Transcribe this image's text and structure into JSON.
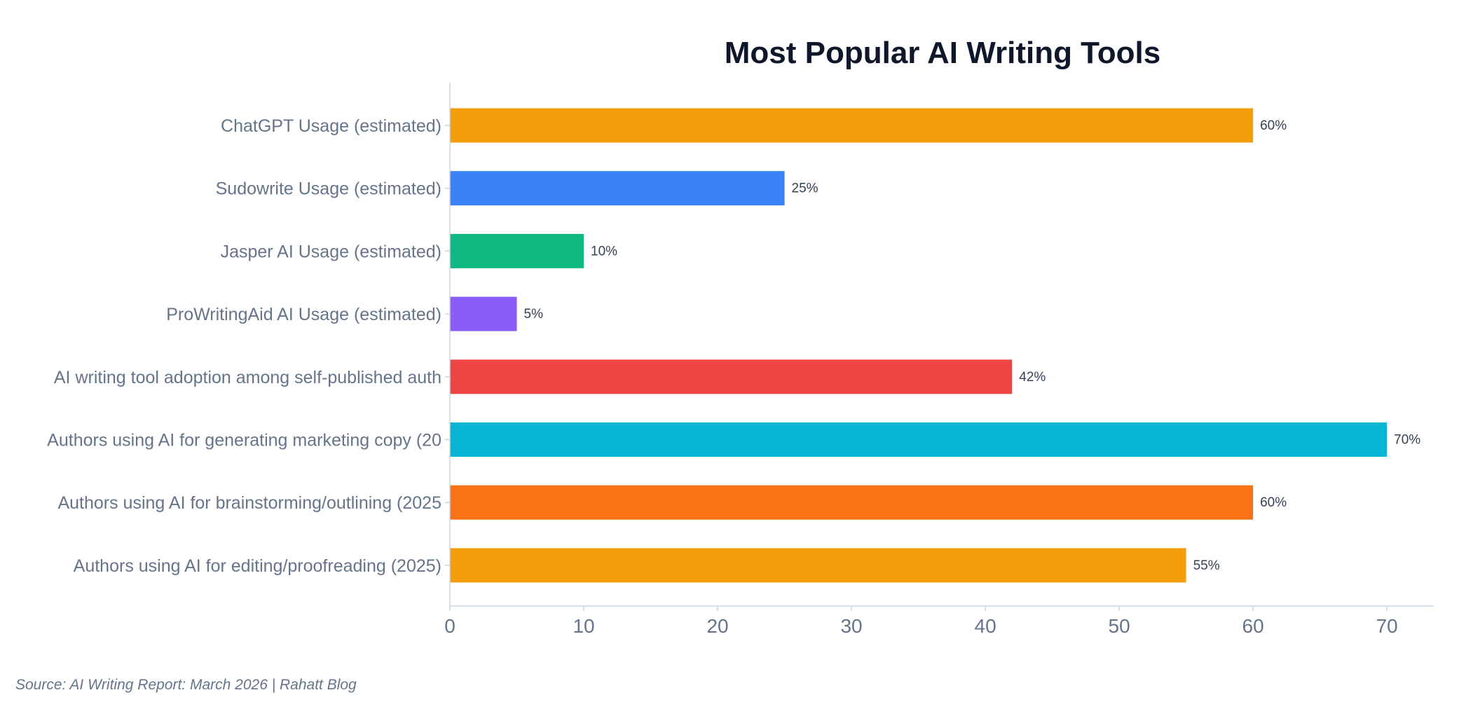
{
  "chart_data": {
    "type": "bar",
    "orientation": "horizontal",
    "title": "Most Popular AI Writing Tools",
    "xlabel": "",
    "ylabel": "",
    "xlim": [
      0,
      73.5
    ],
    "xticks": [
      0,
      10,
      20,
      30,
      40,
      50,
      60,
      70
    ],
    "grid": false,
    "legend": "none",
    "categories": [
      "ChatGPT Usage (estimated)",
      "Sudowrite Usage (estimated)",
      "Jasper AI Usage (estimated)",
      "ProWritingAid AI Usage (estimated)",
      "AI writing tool adoption among self-published auth",
      "Authors using AI for generating marketing copy (20",
      "Authors using AI for brainstorming/outlining (2025",
      "Authors using AI for editing/proofreading (2025)"
    ],
    "values": [
      60,
      25,
      10,
      5,
      42,
      70,
      60,
      55
    ],
    "value_labels": [
      "60%",
      "25%",
      "10%",
      "5%",
      "42%",
      "70%",
      "60%",
      "55%"
    ],
    "colors": [
      "#f59e0b",
      "#3b82f6",
      "#10b981",
      "#8b5cf6",
      "#ef4444",
      "#06b6d4",
      "#f97316",
      "#f59e0b"
    ]
  },
  "source_note": "Source: AI Writing Report: March 2026 | Rahatt Blog",
  "style": {
    "axis_color": "#cbd5e1",
    "title_color": "#0f172a",
    "label_color": "#64748b",
    "value_label_color": "#334155"
  }
}
